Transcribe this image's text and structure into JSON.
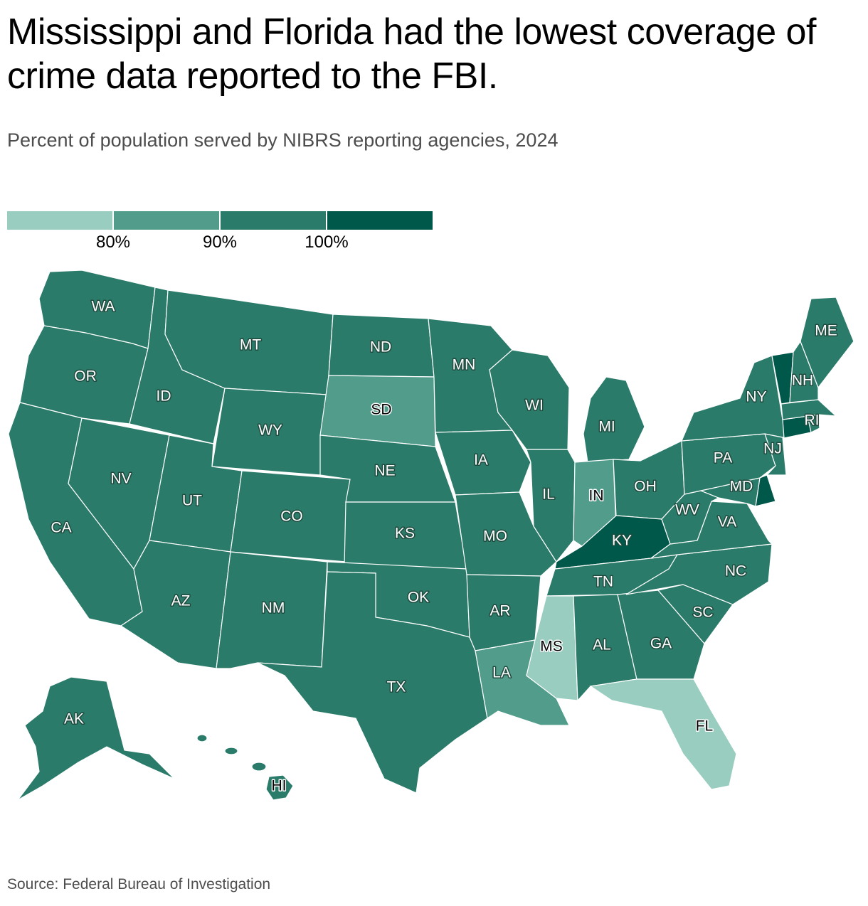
{
  "title": "Mississippi and Florida had the lowest coverage of crime data reported to the FBI.",
  "subtitle": "Percent of population served by NIBRS reporting agencies, 2024",
  "source": "Source: Federal Bureau of Investigation",
  "legend": {
    "bins": [
      {
        "color": "#98cdbf"
      },
      {
        "color": "#529c8c"
      },
      {
        "color": "#2b7b6a"
      },
      {
        "color": "#00584a"
      }
    ],
    "ticks": [
      "80%",
      "90%",
      "100%"
    ]
  },
  "map": {
    "states": [
      {
        "code": "WA",
        "label": "WA",
        "bin": 2
      },
      {
        "code": "OR",
        "label": "OR",
        "bin": 2
      },
      {
        "code": "CA",
        "label": "CA",
        "bin": 2
      },
      {
        "code": "ID",
        "label": "ID",
        "bin": 2
      },
      {
        "code": "NV",
        "label": "NV",
        "bin": 2
      },
      {
        "code": "MT",
        "label": "MT",
        "bin": 2
      },
      {
        "code": "WY",
        "label": "WY",
        "bin": 2
      },
      {
        "code": "UT",
        "label": "UT",
        "bin": 2
      },
      {
        "code": "AZ",
        "label": "AZ",
        "bin": 2
      },
      {
        "code": "CO",
        "label": "CO",
        "bin": 2
      },
      {
        "code": "NM",
        "label": "NM",
        "bin": 2
      },
      {
        "code": "ND",
        "label": "ND",
        "bin": 2
      },
      {
        "code": "SD",
        "label": "SD",
        "bin": 1
      },
      {
        "code": "NE",
        "label": "NE",
        "bin": 2
      },
      {
        "code": "KS",
        "label": "KS",
        "bin": 2
      },
      {
        "code": "OK",
        "label": "OK",
        "bin": 2
      },
      {
        "code": "TX",
        "label": "TX",
        "bin": 2
      },
      {
        "code": "MN",
        "label": "MN",
        "bin": 2
      },
      {
        "code": "IA",
        "label": "IA",
        "bin": 2
      },
      {
        "code": "MO",
        "label": "MO",
        "bin": 2
      },
      {
        "code": "AR",
        "label": "AR",
        "bin": 2
      },
      {
        "code": "LA",
        "label": "LA",
        "bin": 1
      },
      {
        "code": "WI",
        "label": "WI",
        "bin": 2
      },
      {
        "code": "IL",
        "label": "IL",
        "bin": 2
      },
      {
        "code": "MI",
        "label": "MI",
        "bin": 2
      },
      {
        "code": "IN",
        "label": "IN",
        "bin": 1
      },
      {
        "code": "OH",
        "label": "OH",
        "bin": 2
      },
      {
        "code": "KY",
        "label": "KY",
        "bin": 3
      },
      {
        "code": "TN",
        "label": "TN",
        "bin": 2
      },
      {
        "code": "MS",
        "label": "MS",
        "bin": 0
      },
      {
        "code": "AL",
        "label": "AL",
        "bin": 2
      },
      {
        "code": "GA",
        "label": "GA",
        "bin": 2
      },
      {
        "code": "FL",
        "label": "FL",
        "bin": 0
      },
      {
        "code": "SC",
        "label": "SC",
        "bin": 2
      },
      {
        "code": "NC",
        "label": "NC",
        "bin": 2
      },
      {
        "code": "VA",
        "label": "VA",
        "bin": 2
      },
      {
        "code": "WV",
        "label": "WV",
        "bin": 2
      },
      {
        "code": "MD",
        "label": "MD",
        "bin": 2
      },
      {
        "code": "DE",
        "label": "",
        "bin": 3
      },
      {
        "code": "PA",
        "label": "PA",
        "bin": 2
      },
      {
        "code": "NJ",
        "label": "NJ",
        "bin": 2
      },
      {
        "code": "NY",
        "label": "NY",
        "bin": 2
      },
      {
        "code": "CT",
        "label": "",
        "bin": 3
      },
      {
        "code": "RI",
        "label": "RI",
        "bin": 2
      },
      {
        "code": "MA",
        "label": "",
        "bin": 2
      },
      {
        "code": "VT",
        "label": "",
        "bin": 3
      },
      {
        "code": "NH",
        "label": "NH",
        "bin": 2
      },
      {
        "code": "ME",
        "label": "ME",
        "bin": 2
      },
      {
        "code": "AK",
        "label": "AK",
        "bin": 2
      },
      {
        "code": "HI",
        "label": "HI",
        "bin": 2
      }
    ]
  }
}
